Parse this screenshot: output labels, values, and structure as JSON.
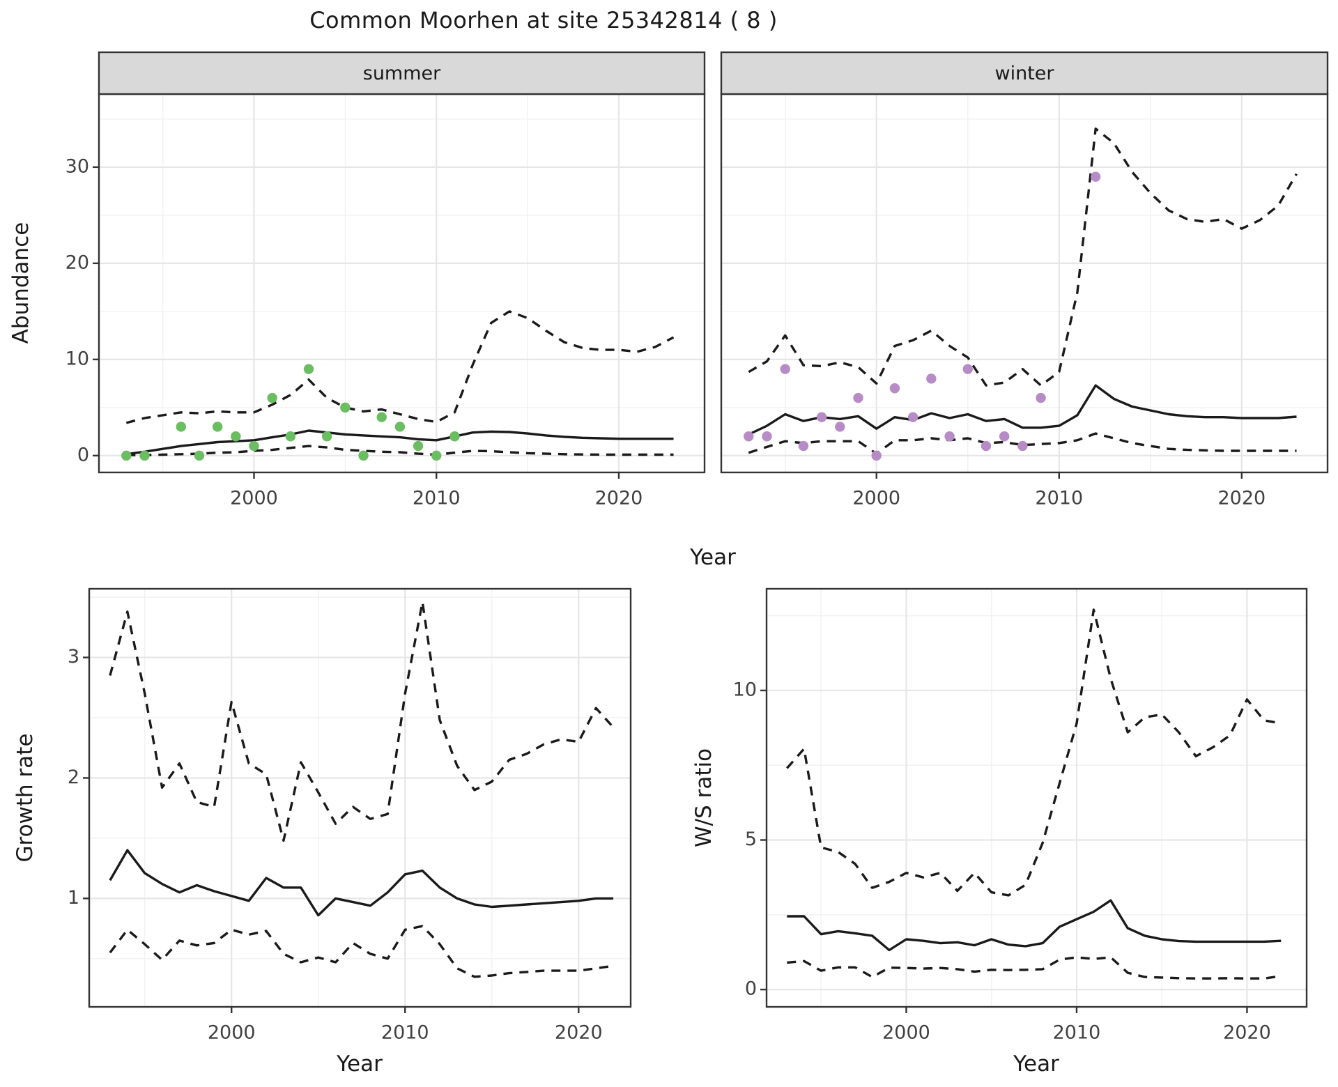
{
  "title": "Common Moorhen at site 25342814 ( 8 )",
  "colors": {
    "line": "#1a1a1a",
    "observed_summer": "#6abd60",
    "observed_winter": "#b78cc6",
    "strip_bg": "#d9d9d9",
    "panel_border": "#333333",
    "grid_major": "#e6e6e6",
    "grid_minor": "#f2f2f2",
    "tick_label": "#404040"
  },
  "chart_data": [
    {
      "id": "abundance_summer",
      "type": "line",
      "facet": "summer",
      "xlabel": "Year",
      "ylabel": "Abundance",
      "xlim": [
        1991.5,
        2024.7
      ],
      "ylim": [
        -1.75,
        37.6
      ],
      "x_ticks": [
        2000,
        2010,
        2020
      ],
      "y_ticks": [
        0,
        10,
        20,
        30
      ],
      "x_minor": [
        1995,
        2005,
        2015
      ],
      "y_minor": [
        5,
        15,
        25,
        35
      ],
      "grid": true,
      "legend": "none",
      "series": [
        {
          "name": "upper_ci",
          "style": "dashed",
          "x": [
            1993,
            1994,
            1995,
            1996,
            1997,
            1998,
            1999,
            2000,
            2001,
            2002,
            2003,
            2004,
            2005,
            2006,
            2007,
            2008,
            2009,
            2010,
            2011,
            2012,
            2013,
            2014,
            2015,
            2016,
            2017,
            2018,
            2019,
            2020,
            2021,
            2022,
            2023
          ],
          "y": [
            3.4,
            3.9,
            4.2,
            4.5,
            4.4,
            4.6,
            4.5,
            4.5,
            5.3,
            6.3,
            7.9,
            6.0,
            5.0,
            4.6,
            4.8,
            4.3,
            3.8,
            3.5,
            4.5,
            9.5,
            13.8,
            15.0,
            14.3,
            13.0,
            11.8,
            11.2,
            11.0,
            11.0,
            10.8,
            11.3,
            12.3
          ]
        },
        {
          "name": "lower_ci",
          "style": "dashed",
          "x": [
            1993,
            1994,
            1995,
            1996,
            1997,
            1998,
            1999,
            2000,
            2001,
            2002,
            2003,
            2004,
            2005,
            2006,
            2007,
            2008,
            2009,
            2010,
            2011,
            2012,
            2013,
            2014,
            2015,
            2016,
            2017,
            2018,
            2019,
            2020,
            2021,
            2022,
            2023
          ],
          "y": [
            0.05,
            0.05,
            0.1,
            0.15,
            0.2,
            0.3,
            0.35,
            0.5,
            0.6,
            0.8,
            1.0,
            0.85,
            0.6,
            0.5,
            0.4,
            0.35,
            0.2,
            0.1,
            0.3,
            0.5,
            0.45,
            0.35,
            0.25,
            0.2,
            0.15,
            0.12,
            0.1,
            0.1,
            0.1,
            0.1,
            0.1
          ]
        },
        {
          "name": "mean",
          "style": "solid",
          "x": [
            1993,
            1994,
            1995,
            1996,
            1997,
            1998,
            1999,
            2000,
            2001,
            2002,
            2003,
            2004,
            2005,
            2006,
            2007,
            2008,
            2009,
            2010,
            2011,
            2012,
            2013,
            2014,
            2015,
            2016,
            2017,
            2018,
            2019,
            2020,
            2021,
            2022,
            2023
          ],
          "y": [
            0.15,
            0.4,
            0.7,
            1.0,
            1.2,
            1.4,
            1.5,
            1.6,
            1.9,
            2.2,
            2.6,
            2.4,
            2.2,
            2.1,
            2.0,
            1.9,
            1.7,
            1.6,
            2.0,
            2.4,
            2.5,
            2.45,
            2.3,
            2.1,
            1.95,
            1.85,
            1.8,
            1.75,
            1.75,
            1.75,
            1.75
          ]
        },
        {
          "name": "observed",
          "style": "points",
          "color": "#6abd60",
          "x": [
            1993,
            1994,
            1996,
            1997,
            1998,
            1999,
            2000,
            2001,
            2002,
            2003,
            2004,
            2005,
            2006,
            2007,
            2008,
            2009,
            2010,
            2011
          ],
          "y": [
            0,
            0,
            3,
            0,
            3,
            2,
            1,
            6,
            2,
            9,
            2,
            5,
            0,
            4,
            3,
            1,
            0,
            2
          ]
        }
      ]
    },
    {
      "id": "abundance_winter",
      "type": "line",
      "facet": "winter",
      "xlabel": "Year",
      "ylabel": "Abundance",
      "xlim": [
        1991.5,
        2024.7
      ],
      "ylim": [
        -1.75,
        37.6
      ],
      "x_ticks": [
        2000,
        2010,
        2020
      ],
      "y_ticks": [
        0,
        10,
        20,
        30
      ],
      "x_minor": [
        1995,
        2005,
        2015
      ],
      "y_minor": [
        5,
        15,
        25,
        35
      ],
      "grid": true,
      "legend": "none",
      "series": [
        {
          "name": "upper_ci",
          "style": "dashed",
          "x": [
            1993,
            1994,
            1995,
            1996,
            1997,
            1998,
            1999,
            2000,
            2001,
            2002,
            2003,
            2004,
            2005,
            2006,
            2007,
            2008,
            2009,
            2010,
            2011,
            2012,
            2013,
            2014,
            2015,
            2016,
            2017,
            2018,
            2019,
            2020,
            2021,
            2022,
            2023
          ],
          "y": [
            8.7,
            9.8,
            12.5,
            9.4,
            9.3,
            9.7,
            9.2,
            7.5,
            11.4,
            12.0,
            13.0,
            11.4,
            10.2,
            7.3,
            7.6,
            9.0,
            7.3,
            8.7,
            17.0,
            34.0,
            32.5,
            29.5,
            27.3,
            25.5,
            24.6,
            24.3,
            24.6,
            23.6,
            24.5,
            26.0,
            29.3
          ]
        },
        {
          "name": "lower_ci",
          "style": "dashed",
          "x": [
            1993,
            1994,
            1995,
            1996,
            1997,
            1998,
            1999,
            2000,
            2001,
            2002,
            2003,
            2004,
            2005,
            2006,
            2007,
            2008,
            2009,
            2010,
            2011,
            2012,
            2013,
            2014,
            2015,
            2016,
            2017,
            2018,
            2019,
            2020,
            2021,
            2022,
            2023
          ],
          "y": [
            0.3,
            0.9,
            1.5,
            1.3,
            1.5,
            1.5,
            1.5,
            0.2,
            1.6,
            1.6,
            1.8,
            1.6,
            1.8,
            1.3,
            1.4,
            1.1,
            1.2,
            1.3,
            1.6,
            2.3,
            1.8,
            1.3,
            1.0,
            0.7,
            0.6,
            0.55,
            0.5,
            0.5,
            0.5,
            0.5,
            0.5
          ]
        },
        {
          "name": "mean",
          "style": "solid",
          "x": [
            1993,
            1994,
            1995,
            1996,
            1997,
            1998,
            1999,
            2000,
            2001,
            2002,
            2003,
            2004,
            2005,
            2006,
            2007,
            2008,
            2009,
            2010,
            2011,
            2012,
            2013,
            2014,
            2015,
            2016,
            2017,
            2018,
            2019,
            2020,
            2021,
            2022,
            2023
          ],
          "y": [
            2.2,
            3.1,
            4.3,
            3.6,
            4.0,
            3.8,
            4.1,
            2.8,
            4.0,
            3.7,
            4.4,
            3.9,
            4.3,
            3.6,
            3.8,
            2.9,
            2.9,
            3.1,
            4.2,
            7.3,
            5.9,
            5.1,
            4.7,
            4.3,
            4.1,
            4.0,
            4.0,
            3.9,
            3.9,
            3.9,
            4.05
          ]
        },
        {
          "name": "observed",
          "style": "points",
          "color": "#b78cc6",
          "x": [
            1993,
            1994,
            1995,
            1996,
            1997,
            1998,
            1999,
            2000,
            2001,
            2002,
            2003,
            2004,
            2005,
            2006,
            2007,
            2008,
            2009,
            2012
          ],
          "y": [
            2,
            2,
            9,
            1,
            4,
            3,
            6,
            0,
            7,
            4,
            8,
            2,
            9,
            1,
            2,
            1,
            6,
            29
          ]
        }
      ]
    },
    {
      "id": "growth_rate",
      "type": "line",
      "facet": "",
      "xlabel": "Year",
      "ylabel": "Growth rate",
      "xlim": [
        1991.8,
        2023.0
      ],
      "ylim": [
        0.1,
        3.57
      ],
      "x_ticks": [
        2000,
        2010,
        2020
      ],
      "y_ticks": [
        1,
        2,
        3
      ],
      "x_minor": [
        1995,
        2005,
        2015
      ],
      "y_minor": [
        0.5,
        1.5,
        2.5,
        3.5
      ],
      "grid": true,
      "legend": "none",
      "series": [
        {
          "name": "upper_ci",
          "style": "dashed",
          "x": [
            1993,
            1994,
            1995,
            1996,
            1997,
            1998,
            1999,
            2000,
            2001,
            2002,
            2003,
            2004,
            2005,
            2006,
            2007,
            2008,
            2009,
            2010,
            2011,
            2012,
            2013,
            2014,
            2015,
            2016,
            2017,
            2018,
            2019,
            2020,
            2021,
            2022
          ],
          "y": [
            2.85,
            3.38,
            2.7,
            1.92,
            2.12,
            1.8,
            1.76,
            2.63,
            2.12,
            2.03,
            1.48,
            2.13,
            1.88,
            1.62,
            1.76,
            1.66,
            1.7,
            2.7,
            3.46,
            2.48,
            2.1,
            1.9,
            1.97,
            2.15,
            2.2,
            2.28,
            2.32,
            2.3,
            2.58,
            2.42
          ]
        },
        {
          "name": "lower_ci",
          "style": "dashed",
          "x": [
            1993,
            1994,
            1995,
            1996,
            1997,
            1998,
            1999,
            2000,
            2001,
            2002,
            2003,
            2004,
            2005,
            2006,
            2007,
            2008,
            2009,
            2010,
            2011,
            2012,
            2013,
            2014,
            2015,
            2016,
            2017,
            2018,
            2019,
            2020,
            2021,
            2022
          ],
          "y": [
            0.55,
            0.74,
            0.62,
            0.49,
            0.65,
            0.61,
            0.63,
            0.74,
            0.7,
            0.73,
            0.54,
            0.47,
            0.51,
            0.47,
            0.63,
            0.54,
            0.5,
            0.74,
            0.77,
            0.62,
            0.42,
            0.35,
            0.36,
            0.38,
            0.39,
            0.4,
            0.4,
            0.4,
            0.42,
            0.44
          ]
        },
        {
          "name": "mean",
          "style": "solid",
          "x": [
            1993,
            1994,
            1995,
            1996,
            1997,
            1998,
            1999,
            2000,
            2001,
            2002,
            2003,
            2004,
            2005,
            2006,
            2007,
            2008,
            2009,
            2010,
            2011,
            2012,
            2013,
            2014,
            2015,
            2016,
            2017,
            2018,
            2019,
            2020,
            2021,
            2022
          ],
          "y": [
            1.15,
            1.4,
            1.21,
            1.12,
            1.05,
            1.11,
            1.06,
            1.02,
            0.98,
            1.17,
            1.09,
            1.09,
            0.86,
            1.0,
            0.97,
            0.94,
            1.05,
            1.2,
            1.23,
            1.09,
            1.0,
            0.95,
            0.93,
            0.94,
            0.95,
            0.96,
            0.97,
            0.98,
            1.0,
            1.0
          ]
        }
      ]
    },
    {
      "id": "ws_ratio",
      "type": "line",
      "facet": "",
      "xlabel": "Year",
      "ylabel": "W/S ratio",
      "xlim": [
        1991.8,
        2023.5
      ],
      "ylim": [
        -0.58,
        13.4
      ],
      "x_ticks": [
        2000,
        2010,
        2020
      ],
      "y_ticks": [
        0,
        5,
        10
      ],
      "x_minor": [
        1995,
        2005,
        2015
      ],
      "y_minor": [
        2.5,
        7.5,
        12.5
      ],
      "grid": true,
      "legend": "none",
      "series": [
        {
          "name": "upper_ci",
          "style": "dashed",
          "x": [
            1993,
            1994,
            1995,
            1996,
            1997,
            1998,
            1999,
            2000,
            2001,
            2002,
            2003,
            2004,
            2005,
            2006,
            2007,
            2008,
            2009,
            2010,
            2011,
            2012,
            2013,
            2014,
            2015,
            2016,
            2017,
            2018,
            2019,
            2020,
            2021,
            2022
          ],
          "y": [
            7.4,
            8.05,
            4.75,
            4.6,
            4.2,
            3.4,
            3.6,
            3.9,
            3.75,
            3.9,
            3.3,
            3.9,
            3.25,
            3.15,
            3.5,
            4.9,
            6.9,
            8.9,
            12.7,
            10.4,
            8.6,
            9.1,
            9.2,
            8.6,
            7.8,
            8.1,
            8.5,
            9.7,
            9.0,
            8.9
          ]
        },
        {
          "name": "lower_ci",
          "style": "dashed",
          "x": [
            1993,
            1994,
            1995,
            1996,
            1997,
            1998,
            1999,
            2000,
            2001,
            2002,
            2003,
            2004,
            2005,
            2006,
            2007,
            2008,
            2009,
            2010,
            2011,
            2012,
            2013,
            2014,
            2015,
            2016,
            2017,
            2018,
            2019,
            2020,
            2021,
            2022
          ],
          "y": [
            0.9,
            0.95,
            0.63,
            0.74,
            0.74,
            0.42,
            0.73,
            0.72,
            0.7,
            0.72,
            0.68,
            0.6,
            0.66,
            0.65,
            0.66,
            0.68,
            1.0,
            1.08,
            1.02,
            1.08,
            0.56,
            0.42,
            0.4,
            0.38,
            0.37,
            0.37,
            0.38,
            0.37,
            0.37,
            0.45
          ]
        },
        {
          "name": "mean",
          "style": "solid",
          "x": [
            1993,
            1994,
            1995,
            1996,
            1997,
            1998,
            1999,
            2000,
            2001,
            2002,
            2003,
            2004,
            2005,
            2006,
            2007,
            2008,
            2009,
            2010,
            2011,
            2012,
            2013,
            2014,
            2015,
            2016,
            2017,
            2018,
            2019,
            2020,
            2021,
            2022
          ],
          "y": [
            2.45,
            2.45,
            1.85,
            1.95,
            1.88,
            1.8,
            1.32,
            1.68,
            1.63,
            1.55,
            1.58,
            1.48,
            1.68,
            1.5,
            1.45,
            1.55,
            2.1,
            2.35,
            2.6,
            2.98,
            2.05,
            1.8,
            1.68,
            1.62,
            1.6,
            1.6,
            1.6,
            1.6,
            1.6,
            1.63
          ]
        }
      ]
    }
  ]
}
